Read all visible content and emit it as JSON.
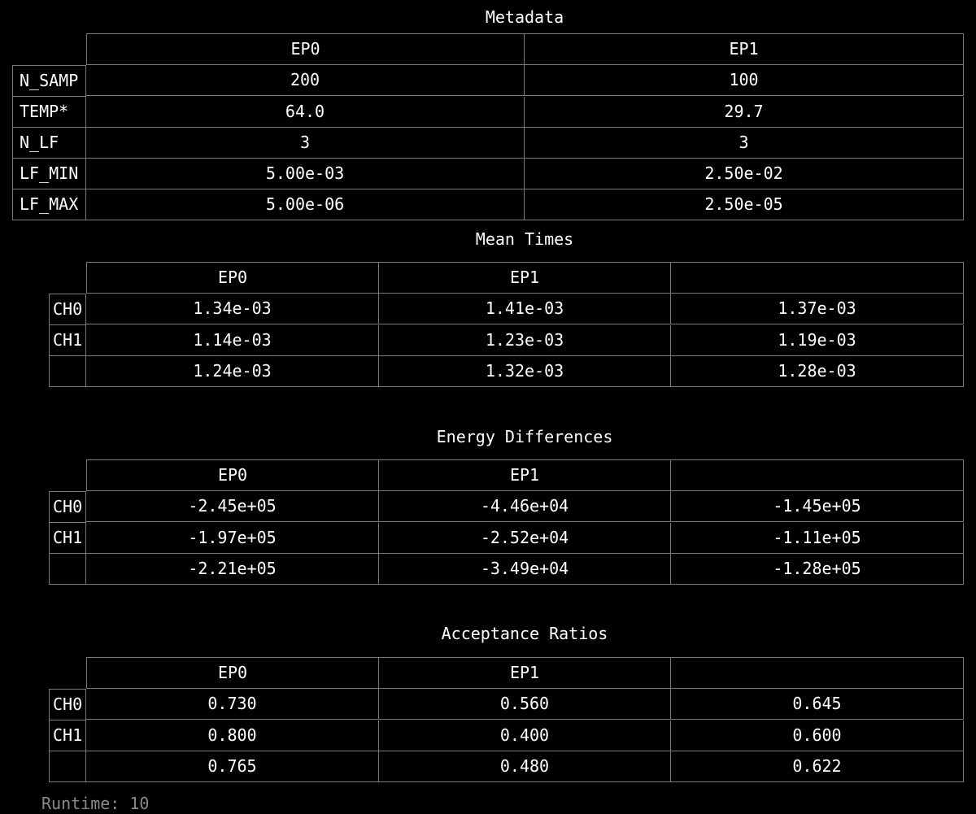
{
  "metadata": {
    "title": "Metadata",
    "columns": [
      "EP0",
      "EP1"
    ],
    "rows": [
      {
        "label": "N_SAMP",
        "values": [
          "200",
          "100"
        ]
      },
      {
        "label": "TEMP*",
        "values": [
          "64.0",
          "29.7"
        ]
      },
      {
        "label": "N_LF",
        "values": [
          "3",
          "3"
        ]
      },
      {
        "label": "LF_MIN",
        "values": [
          "5.00e-03",
          "2.50e-02"
        ]
      },
      {
        "label": "LF_MAX",
        "values": [
          "5.00e-06",
          "2.50e-05"
        ]
      }
    ]
  },
  "mean_times": {
    "title": "Mean Times",
    "columns": [
      "EP0",
      "EP1",
      ""
    ],
    "rows": [
      {
        "label": "CH0",
        "values": [
          "1.34e-03",
          "1.41e-03",
          "1.37e-03"
        ]
      },
      {
        "label": "CH1",
        "values": [
          "1.14e-03",
          "1.23e-03",
          "1.19e-03"
        ]
      },
      {
        "label": "",
        "values": [
          "1.24e-03",
          "1.32e-03",
          "1.28e-03"
        ]
      }
    ]
  },
  "energy_differences": {
    "title": "Energy Differences",
    "columns": [
      "EP0",
      "EP1",
      ""
    ],
    "rows": [
      {
        "label": "CH0",
        "values": [
          "-2.45e+05",
          "-4.46e+04",
          "-1.45e+05"
        ]
      },
      {
        "label": "CH1",
        "values": [
          "-1.97e+05",
          "-2.52e+04",
          "-1.11e+05"
        ]
      },
      {
        "label": "",
        "values": [
          "-2.21e+05",
          "-3.49e+04",
          "-1.28e+05"
        ]
      }
    ]
  },
  "acceptance_ratios": {
    "title": "Acceptance Ratios",
    "columns": [
      "EP0",
      "EP1",
      ""
    ],
    "rows": [
      {
        "label": "CH0",
        "values": [
          "0.730",
          "0.560",
          "0.645"
        ]
      },
      {
        "label": "CH1",
        "values": [
          "0.800",
          "0.400",
          "0.600"
        ]
      },
      {
        "label": "",
        "values": [
          "0.765",
          "0.480",
          "0.622"
        ]
      }
    ]
  },
  "footer": {
    "runtime": "Runtime: 10"
  },
  "colors": {
    "background": "#000000",
    "text": "#ffffff",
    "grid": "#7a7a7a",
    "footer_text": "#8a8a8a"
  }
}
